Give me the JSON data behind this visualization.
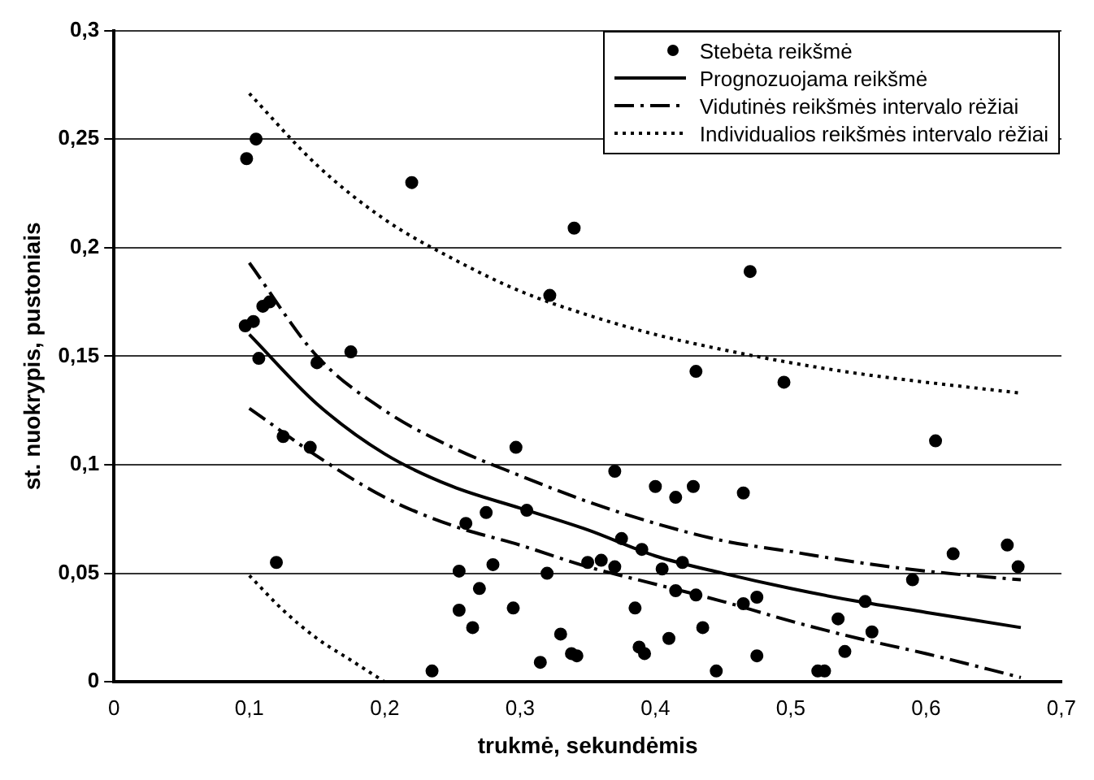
{
  "chart_data": {
    "type": "scatter",
    "xlabel": "trukmė, sekundėmis",
    "ylabel": "st. nuokrypis, pustoniais",
    "xlim": [
      0,
      0.7
    ],
    "xticks": [
      0,
      {
        "value": 0.1,
        "label": "0,1"
      },
      {
        "value": 0.2,
        "label": "0,2"
      },
      {
        "value": 0.3,
        "label": "0,3"
      },
      {
        "value": 0.4,
        "label": "0,4"
      },
      {
        "value": 0.5,
        "label": "0,5"
      },
      {
        "value": 0.6,
        "label": "0,6"
      },
      {
        "value": 0.7,
        "label": "0,7"
      }
    ],
    "ylim": [
      0,
      0.3
    ],
    "yticks": [
      0,
      {
        "value": 0.05,
        "label": "0,05"
      },
      {
        "value": 0.1,
        "label": "0,1"
      },
      {
        "value": 0.15,
        "label": "0,15"
      },
      {
        "value": 0.2,
        "label": "0,2"
      },
      {
        "value": 0.25,
        "label": "0,25"
      },
      {
        "value": 0.3,
        "label": "0,3"
      }
    ],
    "grid": "y",
    "legend": "top right",
    "series": [
      {
        "name": "Stebėta reikšmė",
        "type": "scatter",
        "color": "#000000",
        "marker": "circle",
        "x": [
          0.098,
          0.105,
          0.097,
          0.103,
          0.107,
          0.11,
          0.115,
          0.12,
          0.125,
          0.145,
          0.15,
          0.175,
          0.22,
          0.235,
          0.255,
          0.255,
          0.26,
          0.265,
          0.27,
          0.275,
          0.28,
          0.295,
          0.297,
          0.305,
          0.315,
          0.32,
          0.322,
          0.33,
          0.338,
          0.34,
          0.342,
          0.35,
          0.36,
          0.37,
          0.37,
          0.375,
          0.385,
          0.388,
          0.39,
          0.392,
          0.4,
          0.405,
          0.41,
          0.415,
          0.415,
          0.42,
          0.428,
          0.43,
          0.43,
          0.435,
          0.445,
          0.465,
          0.465,
          0.47,
          0.475,
          0.475,
          0.495,
          0.52,
          0.525,
          0.535,
          0.54,
          0.555,
          0.56,
          0.59,
          0.607,
          0.62,
          0.66,
          0.668
        ],
        "values": [
          0.241,
          0.25,
          0.164,
          0.166,
          0.149,
          0.173,
          0.175,
          0.055,
          0.113,
          0.108,
          0.147,
          0.152,
          0.23,
          0.005,
          0.051,
          0.033,
          0.073,
          0.025,
          0.043,
          0.078,
          0.054,
          0.034,
          0.108,
          0.079,
          0.009,
          0.05,
          0.178,
          0.022,
          0.013,
          0.209,
          0.012,
          0.055,
          0.056,
          0.097,
          0.053,
          0.066,
          0.034,
          0.016,
          0.061,
          0.013,
          0.09,
          0.052,
          0.02,
          0.085,
          0.042,
          0.055,
          0.09,
          0.143,
          0.04,
          0.025,
          0.005,
          0.087,
          0.036,
          0.189,
          0.039,
          0.012,
          0.138,
          0.005,
          0.005,
          0.029,
          0.014,
          0.037,
          0.023,
          0.047,
          0.111,
          0.059,
          0.063,
          0.053
        ]
      },
      {
        "name": "Prognozuojama reikšmė",
        "type": "line",
        "color": "#000000",
        "marker": "none",
        "line_style": "solid",
        "x": [
          0.1,
          0.15,
          0.2,
          0.25,
          0.3,
          0.35,
          0.4,
          0.45,
          0.5,
          0.55,
          0.6,
          0.67
        ],
        "values": [
          0.16,
          0.128,
          0.105,
          0.09,
          0.08,
          0.07,
          0.058,
          0.05,
          0.043,
          0.037,
          0.032,
          0.025
        ]
      },
      {
        "name": "Vidutinės reikšmės intervalo rėžiai",
        "type": "line",
        "color": "#000000",
        "marker": "none",
        "line_style": "dashed",
        "x": [
          0.1,
          0.15,
          0.2,
          0.25,
          0.3,
          0.35,
          0.4,
          0.45,
          0.5,
          0.55,
          0.6,
          0.67
        ],
        "values": [
          0.193,
          0.15,
          0.125,
          0.108,
          0.095,
          0.083,
          0.073,
          0.065,
          0.06,
          0.055,
          0.051,
          0.047
        ]
      },
      {
        "type": "line",
        "color": "#000000",
        "marker": "none",
        "line_style": "dashed",
        "x": [
          0.1,
          0.15,
          0.2,
          0.25,
          0.3,
          0.35,
          0.4,
          0.45,
          0.5,
          0.55,
          0.6,
          0.67
        ],
        "values": [
          0.126,
          0.104,
          0.085,
          0.072,
          0.063,
          0.053,
          0.045,
          0.037,
          0.028,
          0.02,
          0.013,
          0.002
        ]
      },
      {
        "name": "Individualios reikšmės intervalo rėžiai",
        "type": "line",
        "color": "#000000",
        "marker": "none",
        "line_style": "dotted",
        "x": [
          0.1,
          0.15,
          0.2,
          0.25,
          0.3,
          0.35,
          0.4,
          0.45,
          0.5,
          0.55,
          0.6,
          0.67
        ],
        "values": [
          0.271,
          0.238,
          0.213,
          0.195,
          0.18,
          0.169,
          0.16,
          0.153,
          0.147,
          0.142,
          0.138,
          0.133
        ]
      },
      {
        "type": "line",
        "color": "#000000",
        "marker": "none",
        "line_style": "dotted",
        "x": [
          0.1,
          0.125,
          0.15,
          0.175,
          0.2
        ],
        "values": [
          0.049,
          0.033,
          0.02,
          0.01,
          0
        ]
      }
    ]
  }
}
